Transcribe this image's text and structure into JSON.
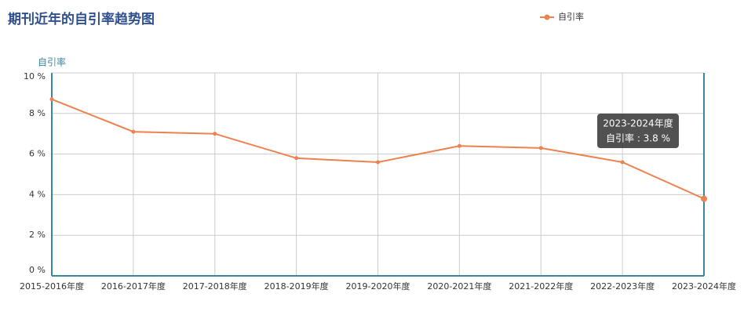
{
  "chart_data": {
    "type": "line",
    "title": "期刊近年的自引率趋势图",
    "y_label": "自引率",
    "categories": [
      "2015-2016年度",
      "2016-2017年度",
      "2017-2018年度",
      "2018-2019年度",
      "2019-2020年度",
      "2020-2021年度",
      "2021-2022年度",
      "2022-2023年度",
      "2023-2024年度"
    ],
    "series": [
      {
        "name": "自引率",
        "color": "#ee8150",
        "values": [
          8.7,
          7.1,
          7.0,
          5.8,
          5.6,
          6.4,
          6.3,
          5.6,
          3.8
        ]
      }
    ],
    "ylim": [
      0,
      10
    ],
    "yticks": [
      {
        "value": 0,
        "label": "0 %"
      },
      {
        "value": 2,
        "label": "2 %"
      },
      {
        "value": 4,
        "label": "4 %"
      },
      {
        "value": 6,
        "label": "6 %"
      },
      {
        "value": 8,
        "label": "8 %"
      },
      {
        "value": 10,
        "label": "10 %"
      }
    ],
    "grid": true,
    "legend": "top-right",
    "tooltip": {
      "title": "2023-2024年度",
      "text": "自引率 : 3.8 %"
    }
  }
}
